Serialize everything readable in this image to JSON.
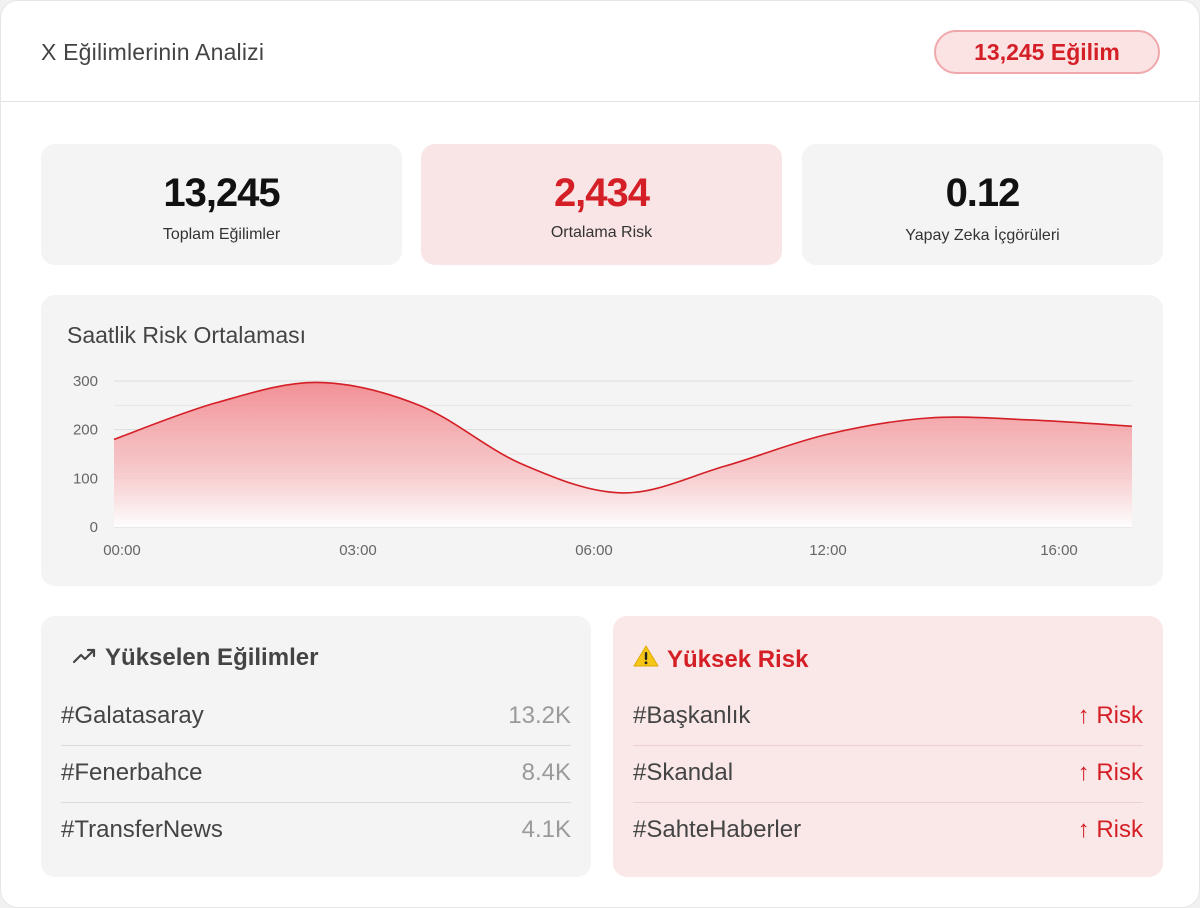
{
  "header": {
    "title": "X Eğilimlerinin Analizi",
    "badge": "13,245 Eğilim"
  },
  "stats": [
    {
      "value": "13,245",
      "label": "Toplam Eğilimler"
    },
    {
      "value": "2,434",
      "label": "Ortalama Risk"
    },
    {
      "value": "0.12",
      "label": "Yapay Zeka İçgörüleri"
    }
  ],
  "chart": {
    "title": "Saatlik Risk Ortalaması",
    "y_ticks": [
      "300",
      "200",
      "100",
      "0"
    ],
    "x_ticks": [
      "00:00",
      "03:00",
      "06:00",
      "12:00",
      "16:00"
    ]
  },
  "chart_data": {
    "type": "area",
    "title": "Saatlik Risk Ortalaması",
    "xlabel": "",
    "ylabel": "",
    "ylim": [
      0,
      300
    ],
    "grid": true,
    "x_tick_labels": [
      "00:00",
      "03:00",
      "06:00",
      "12:00",
      "16:00"
    ],
    "series": [
      {
        "values": [
          180,
          255,
          297,
          250,
          130,
          70,
          125,
          190,
          224,
          220,
          207
        ]
      }
    ],
    "colors": {
      "line": "#d41f26",
      "fill": "#f28b90"
    }
  },
  "trending": {
    "title": "Yükselen Eğilimler",
    "icon": "trending-up-icon",
    "items": [
      {
        "tag": "#Galatasaray",
        "value": "13.2K"
      },
      {
        "tag": "#Fenerbahce",
        "value": "8.4K"
      },
      {
        "tag": "#TransferNews",
        "value": "4.1K"
      }
    ]
  },
  "high_risk": {
    "title": "Yüksek Risk",
    "icon": "warning-icon",
    "items": [
      {
        "tag": "#Başkanlık",
        "label": "↑ Risk"
      },
      {
        "tag": "#Skandal",
        "label": "↑ Risk"
      },
      {
        "tag": "#SahteHaberler",
        "label": "↑ Risk"
      }
    ]
  },
  "colors": {
    "accent": "#d41f26",
    "risk_bg": "#fae5e6",
    "card_bg": "#f4f4f4"
  }
}
